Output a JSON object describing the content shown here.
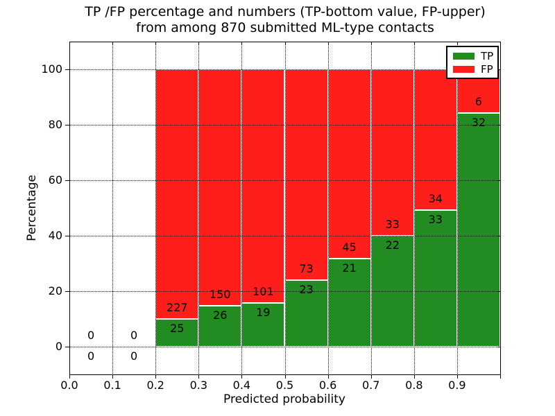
{
  "figure": {
    "title_line1": "TP /FP percentage and numbers (TP-bottom value, FP-upper)",
    "title_line2": "from among 870 submitted ML-type contacts",
    "xlabel": "Predicted probability",
    "ylabel": "Percentage"
  },
  "legend": {
    "items": [
      {
        "label": "TP",
        "color": "#228b22"
      },
      {
        "label": "FP",
        "color": "#ff1f1a"
      }
    ]
  },
  "chart_data": {
    "type": "bar",
    "stacked": true,
    "normalized": "each bar stacked to 100%",
    "title": "TP /FP percentage and numbers (TP-bottom value, FP-upper) from among 870 submitted ML-type contacts",
    "xlabel": "Predicted probability",
    "ylabel": "Percentage",
    "bin_width": 0.1,
    "categories": [
      0.0,
      0.1,
      0.2,
      0.3,
      0.4,
      0.5,
      0.6,
      0.7,
      0.8,
      0.9
    ],
    "series": [
      {
        "name": "TP",
        "color": "#228b22",
        "counts": [
          0,
          0,
          25,
          26,
          19,
          23,
          21,
          22,
          33,
          32
        ]
      },
      {
        "name": "FP",
        "color": "#ff1f1a",
        "counts": [
          0,
          0,
          227,
          150,
          101,
          73,
          45,
          33,
          34,
          6
        ]
      }
    ],
    "total_contacts": 870,
    "xtick_labels": [
      "0.0",
      "0.1",
      "0.2",
      "0.3",
      "0.4",
      "0.5",
      "0.6",
      "0.7",
      "0.8",
      "0.9"
    ],
    "ytick_values": [
      0,
      20,
      40,
      60,
      80,
      100
    ],
    "xlim": [
      0.0,
      1.0
    ],
    "ylim": [
      -10,
      110
    ],
    "grid": "dotted black, both axes",
    "legend_position": "upper right"
  }
}
